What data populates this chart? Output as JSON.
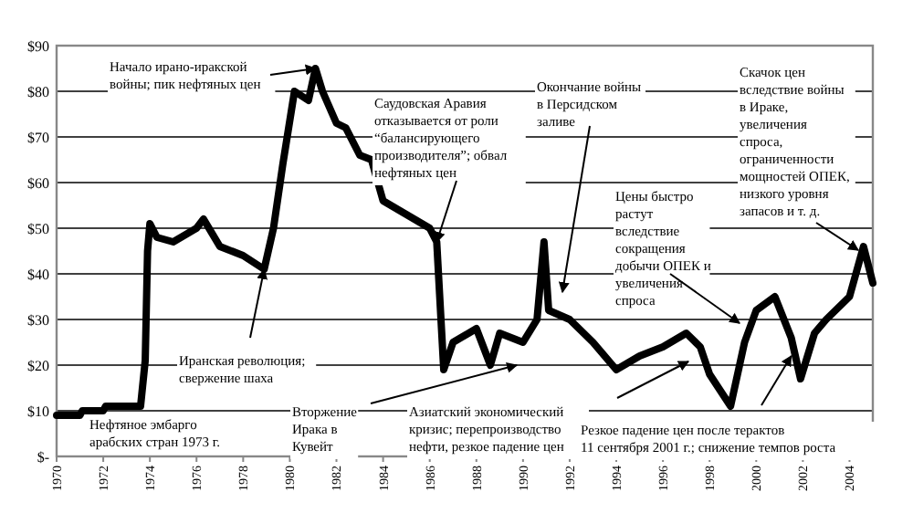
{
  "chart_data": {
    "type": "line",
    "xlim": [
      1970,
      2005
    ],
    "xticks": [
      1970,
      1972,
      1974,
      1976,
      1978,
      1980,
      1982,
      1984,
      1986,
      1988,
      1990,
      1992,
      1994,
      1996,
      1998,
      2000,
      2002,
      2004
    ],
    "ylim": [
      0,
      90
    ],
    "yticks": [
      {
        "value": 0,
        "label": "$-"
      },
      {
        "value": 10,
        "label": "$10"
      },
      {
        "value": 20,
        "label": "$20"
      },
      {
        "value": 30,
        "label": "$30"
      },
      {
        "value": 40,
        "label": "$40"
      },
      {
        "value": 50,
        "label": "$50"
      },
      {
        "value": 60,
        "label": "$60"
      },
      {
        "value": 70,
        "label": "$70"
      },
      {
        "value": 80,
        "label": "$80"
      },
      {
        "value": 90,
        "label": "$90"
      }
    ],
    "grid": "y",
    "marker": "none",
    "line_style": "solid",
    "series": [
      {
        "color": "#000000",
        "x": [
          1970,
          1971,
          1971.1,
          1972,
          1972.1,
          1973,
          1973.6,
          1973.8,
          1973.9,
          1974,
          1974.3,
          1975,
          1976,
          1976.3,
          1977,
          1978,
          1978.9,
          1979.3,
          1979.7,
          1980.2,
          1980.8,
          1981.1,
          1981.4,
          1982,
          1982.4,
          1983,
          1983.5,
          1984,
          1985,
          1986,
          1986.3,
          1986.6,
          1987,
          1988,
          1988.6,
          1989,
          1990,
          1990.6,
          1990.9,
          1991.1,
          1992,
          1993,
          1994,
          1995,
          1996,
          1997,
          1997.6,
          1998,
          1998.9,
          1999.5,
          2000,
          2000.8,
          2001.5,
          2001.9,
          2002.5,
          2003,
          2004,
          2004.6,
          2005
        ],
        "values": [
          9,
          9,
          10,
          10,
          11,
          11,
          11,
          21,
          45,
          51,
          48,
          47,
          50,
          52,
          46,
          44,
          41,
          50,
          64,
          80,
          78,
          85,
          80,
          73,
          72,
          66,
          65,
          56,
          53,
          50,
          47,
          19,
          25,
          28,
          20,
          27,
          25,
          30,
          47,
          32,
          30,
          25,
          19,
          22,
          24,
          27,
          24,
          18,
          11,
          25,
          32,
          35,
          26,
          17,
          27,
          30,
          35,
          46,
          38
        ]
      }
    ],
    "annotations": [
      "Нефтяное эмбарго арабских стран 1973 г.",
      {
        "text": "Иранская революция; свержение шаха",
        "x": 1978.9,
        "y": 41
      },
      {
        "text": "Начало ирано-иракской войны; пик нефтяных цен",
        "x": 1981.1,
        "y": 85
      },
      {
        "text": "Саудовская Аравия отказывается от роли “балансирующего производителя”; обвал нефтяных цен",
        "x": 1986.3,
        "y": 47
      },
      "Вторжение Ирака в Кувейт",
      "Окончание войны в Персидском заливе",
      "Азиатский экономический кризис; перепроизводство нефти, резкое падение цен",
      "Цены быстро растут вследствие сокращения добычи ОПЕК и увеличения спроса",
      {
        "text": "Резкое падение цен после терактов 11 сентября 2001 г.; снижение темпов роста",
        "x": 2001.5,
        "y": 22
      },
      "Скачок цен вследствие войны в Ираке, увеличения спроса, ограниченности мощностей ОПЕК, низкого уровня запасов и т. д."
    ]
  }
}
